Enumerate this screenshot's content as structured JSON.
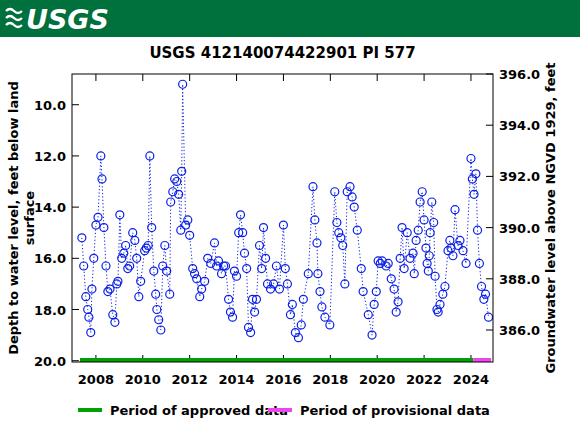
{
  "header": {
    "logo": "USGS"
  },
  "chart_data": {
    "type": "line",
    "title": "USGS 412140074422901 PI   577",
    "ylabel": "Depth to water level, feet below land surface",
    "y2label": "Groundwater level above NGVD 1929, feet",
    "color": "#0a1ee6",
    "marker": "circle",
    "line_style": "dotted",
    "xlim": [
      2006.98,
      2024.94
    ],
    "xticks": [
      2008,
      2010,
      2012,
      2014,
      2016,
      2018,
      2020,
      2022,
      2024
    ],
    "ylim": [
      20.05,
      8.8
    ],
    "yticks": [
      {
        "value": 10,
        "label": "10.0"
      },
      {
        "value": 12,
        "label": "12.0"
      },
      {
        "value": 14,
        "label": "14.0"
      },
      {
        "value": 16,
        "label": "16.0"
      },
      {
        "value": 18,
        "label": "18.0"
      },
      {
        "value": 20,
        "label": "20.0"
      }
    ],
    "y2lim": [
      384.75,
      396.0
    ],
    "y2ticks": [
      {
        "value": 386,
        "label": "386.0"
      },
      {
        "value": 388,
        "label": "388.0"
      },
      {
        "value": 390,
        "label": "390.0"
      },
      {
        "value": 392,
        "label": "392.0"
      },
      {
        "value": 394,
        "label": "394.0"
      },
      {
        "value": 396,
        "label": "396.0"
      }
    ],
    "periods": [
      {
        "name": "Period of approved data",
        "color": "#00a000",
        "start": 2007.32,
        "end": 2024.1
      },
      {
        "name": "Period of provisional data",
        "color": "#ee44ee",
        "start": 2024.1,
        "end": 2024.86
      }
    ],
    "x": [
      2007.4,
      2007.48,
      2007.57,
      2007.65,
      2007.7,
      2007.78,
      2007.83,
      2007.91,
      2008.0,
      2008.09,
      2008.21,
      2008.26,
      2008.34,
      2008.43,
      2008.51,
      2008.6,
      2008.72,
      2008.81,
      2008.89,
      2008.94,
      2009.02,
      2009.1,
      2009.19,
      2009.27,
      2009.36,
      2009.44,
      2009.57,
      2009.66,
      2009.74,
      2009.83,
      2009.91,
      2010.08,
      2010.15,
      2010.23,
      2010.3,
      2010.38,
      2010.47,
      2010.55,
      2010.6,
      2010.68,
      2010.77,
      2010.85,
      2010.94,
      2011.02,
      2011.15,
      2011.19,
      2011.28,
      2011.36,
      2011.45,
      2011.53,
      2011.62,
      2011.66,
      2011.7,
      2011.83,
      2011.92,
      2012.0,
      2012.13,
      2012.21,
      2012.3,
      2012.43,
      2012.51,
      2012.64,
      2012.77,
      2012.9,
      2013.06,
      2013.15,
      2013.23,
      2013.36,
      2013.45,
      2013.53,
      2013.66,
      2013.74,
      2013.83,
      2013.91,
      2014.0,
      2014.09,
      2014.17,
      2014.26,
      2014.34,
      2014.43,
      2014.51,
      2014.6,
      2014.68,
      2014.77,
      2014.85,
      2014.98,
      2015.07,
      2015.15,
      2015.24,
      2015.32,
      2015.45,
      2015.58,
      2015.7,
      2015.83,
      2016.0,
      2016.08,
      2016.17,
      2016.3,
      2016.38,
      2016.51,
      2016.64,
      2016.76,
      2016.85,
      2017.06,
      2017.26,
      2017.34,
      2017.43,
      2017.47,
      2017.56,
      2017.64,
      2017.77,
      2017.98,
      2018.19,
      2018.28,
      2018.36,
      2018.45,
      2018.53,
      2018.62,
      2018.72,
      2018.84,
      2018.93,
      2019.02,
      2019.15,
      2019.32,
      2019.4,
      2019.62,
      2019.78,
      2019.87,
      2019.96,
      2020.04,
      2020.13,
      2020.21,
      2020.38,
      2020.47,
      2020.6,
      2020.72,
      2020.81,
      2020.89,
      2020.98,
      2021.06,
      2021.15,
      2021.28,
      2021.4,
      2021.53,
      2021.58,
      2021.66,
      2021.75,
      2021.83,
      2021.92,
      2022.0,
      2022.08,
      2022.13,
      2022.18,
      2022.22,
      2022.26,
      2022.33,
      2022.41,
      2022.47,
      2022.55,
      2022.6,
      2022.68,
      2022.8,
      2022.89,
      2023.02,
      2023.1,
      2023.15,
      2023.23,
      2023.32,
      2023.45,
      2023.53,
      2023.66,
      2023.79,
      2024.0,
      2024.06,
      2024.13,
      2024.21,
      2024.28,
      2024.36,
      2024.45,
      2024.55,
      2024.62,
      2024.75
    ],
    "values": [
      15.2,
      16.3,
      17.5,
      18.0,
      18.3,
      18.9,
      17.2,
      16.0,
      14.7,
      14.4,
      12.0,
      12.9,
      14.8,
      16.3,
      17.3,
      17.2,
      18.2,
      18.5,
      17.0,
      16.9,
      14.3,
      16.0,
      15.8,
      15.5,
      16.4,
      16.3,
      15.0,
      15.3,
      16.0,
      17.5,
      16.9,
      15.7,
      15.6,
      15.5,
      12.0,
      14.8,
      16.5,
      17.4,
      18.0,
      18.4,
      18.8,
      16.3,
      15.5,
      16.5,
      17.4,
      13.8,
      13.4,
      12.9,
      13.0,
      13.5,
      14.9,
      12.6,
      9.2,
      14.7,
      14.5,
      15.1,
      16.4,
      16.6,
      16.8,
      17.5,
      17.2,
      16.9,
      16.0,
      16.2,
      15.4,
      16.3,
      16.1,
      16.6,
      16.3,
      16.3,
      17.6,
      18.1,
      18.3,
      16.5,
      16.7,
      15.0,
      14.3,
      15.0,
      15.8,
      16.4,
      18.7,
      18.9,
      17.6,
      18.1,
      17.6,
      15.5,
      16.4,
      14.8,
      16.0,
      17.0,
      17.2,
      17.0,
      16.3,
      17.2,
      14.7,
      16.4,
      17.0,
      18.2,
      17.8,
      18.9,
      19.1,
      18.6,
      17.6,
      16.6,
      13.2,
      14.5,
      15.4,
      16.6,
      17.3,
      17.9,
      18.3,
      18.6,
      13.4,
      14.6,
      15.0,
      15.2,
      15.5,
      17.0,
      13.4,
      13.2,
      13.6,
      14.0,
      14.9,
      16.4,
      17.3,
      18.2,
      19.0,
      17.8,
      17.3,
      16.1,
      16.2,
      16.1,
      16.3,
      16.2,
      16.8,
      17.2,
      18.1,
      17.7,
      16.0,
      14.8,
      16.4,
      15.0,
      16.0,
      15.8,
      16.6,
      15.3,
      14.9,
      13.8,
      13.4,
      14.5,
      15.6,
      16.2,
      16.5,
      15.9,
      15.0,
      13.8,
      14.6,
      16.7,
      18.0,
      18.1,
      17.8,
      17.4,
      17.1,
      15.7,
      15.3,
      15.6,
      15.9,
      14.1,
      15.5,
      15.3,
      15.7,
      16.2,
      12.1,
      12.9,
      13.5,
      12.7,
      14.9,
      16.2,
      17.1,
      17.6,
      17.4,
      18.3
    ]
  }
}
